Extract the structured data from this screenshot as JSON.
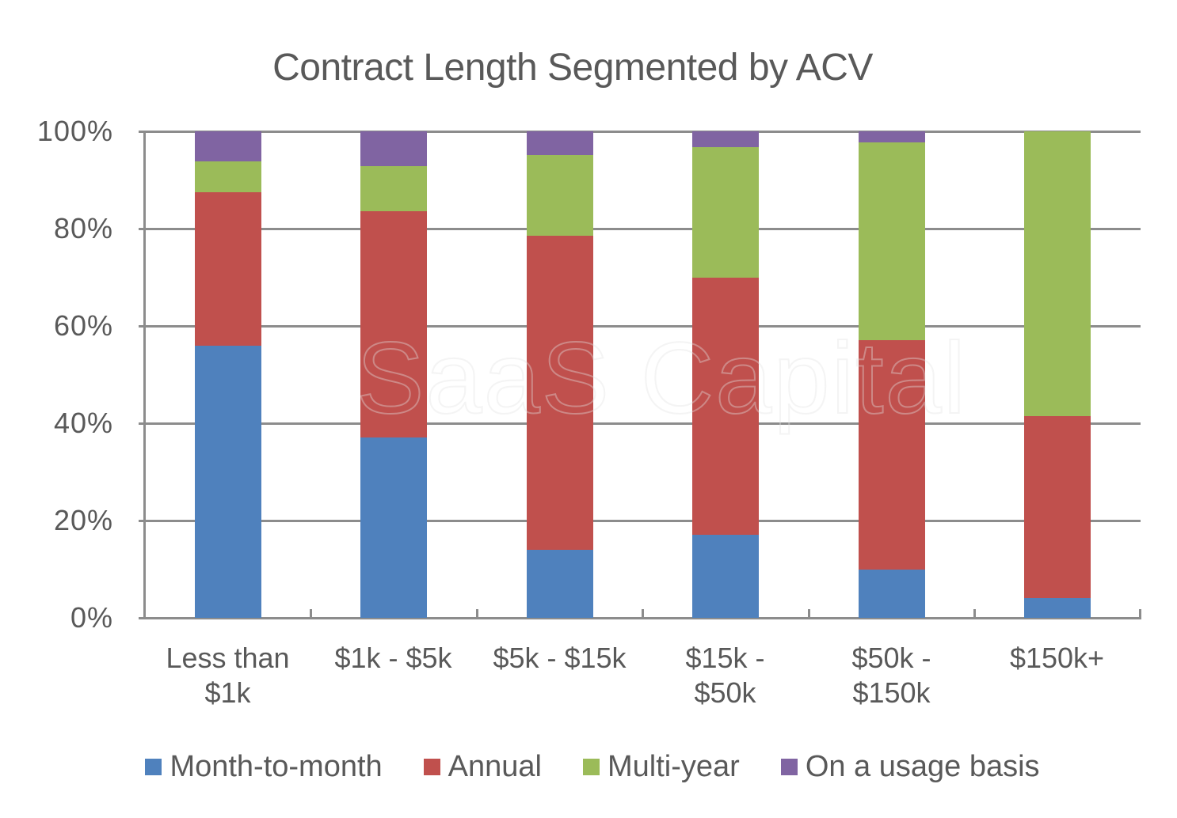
{
  "chart": {
    "title": "Contract Length Segmented by ACV",
    "watermark": "SaaS Capital"
  },
  "y_axis": {
    "ticks": [
      "0%",
      "20%",
      "40%",
      "60%",
      "80%",
      "100%"
    ]
  },
  "x_axis": {
    "labels": [
      "Less than\n$1k",
      "$1k - $5k",
      "$5k - $15k",
      "$15k -\n$50k",
      "$50k -\n$150k",
      "$150k+"
    ]
  },
  "legend": {
    "items": [
      {
        "label": "Month-to-month",
        "color": "#4F81BD"
      },
      {
        "label": "Annual",
        "color": "#C0504D"
      },
      {
        "label": "Multi-year",
        "color": "#9BBB59"
      },
      {
        "label": "On a usage basis",
        "color": "#8064A2"
      }
    ]
  },
  "chart_data": {
    "type": "bar",
    "stacked": "percent",
    "title": "Contract Length Segmented by ACV",
    "xlabel": "",
    "ylabel": "",
    "ylim": [
      0,
      100
    ],
    "y_tick_labels": [
      "0%",
      "20%",
      "40%",
      "60%",
      "80%",
      "100%"
    ],
    "grid": true,
    "legend_position": "bottom",
    "categories": [
      "Less than $1k",
      "$1k - $5k",
      "$5k - $15k",
      "$15k - $50k",
      "$50k - $150k",
      "$150k+"
    ],
    "series": [
      {
        "name": "Month-to-month",
        "color": "#4F81BD",
        "values": [
          56,
          37,
          14,
          17,
          10,
          4
        ]
      },
      {
        "name": "Annual",
        "color": "#C0504D",
        "values": [
          31.5,
          46.5,
          64.5,
          53,
          47,
          37.5
        ]
      },
      {
        "name": "Multi-year",
        "color": "#9BBB59",
        "values": [
          6.3,
          9.3,
          16.6,
          26.8,
          40.8,
          58.5
        ]
      },
      {
        "name": "On a usage basis",
        "color": "#8064A2",
        "values": [
          6.2,
          7.2,
          4.9,
          3.2,
          2.2,
          0
        ]
      }
    ],
    "annotations": [
      "SaaS Capital (watermark)"
    ]
  }
}
